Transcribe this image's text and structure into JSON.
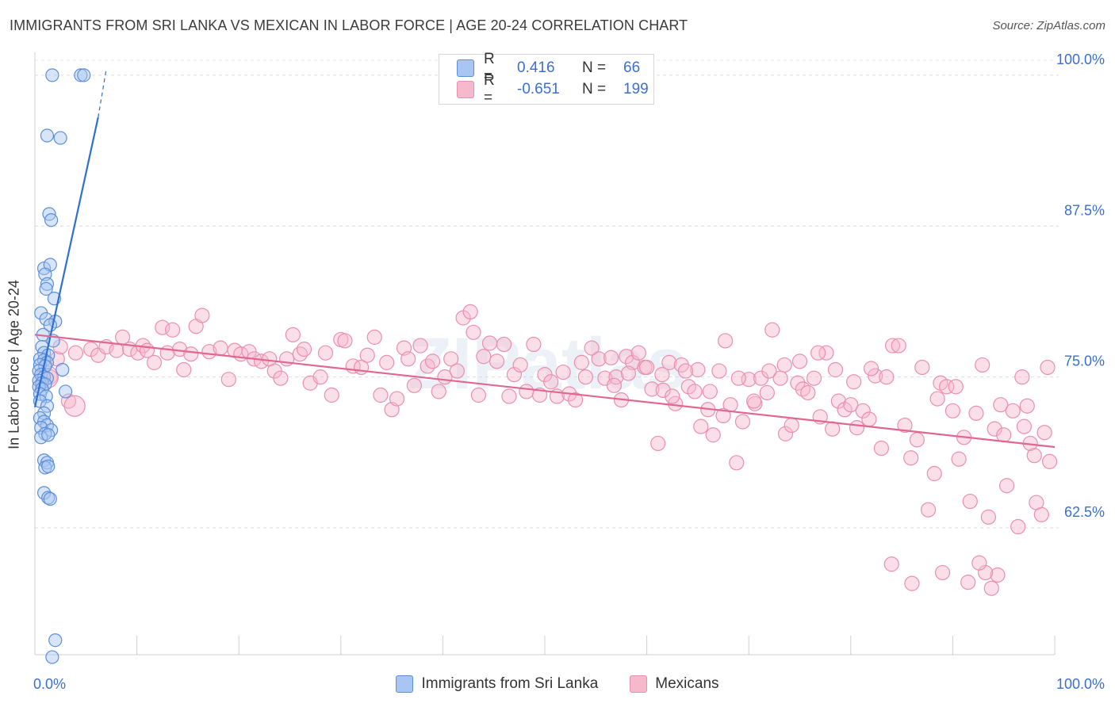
{
  "title": "IMMIGRANTS FROM SRI LANKA VS MEXICAN IN LABOR FORCE | AGE 20-24 CORRELATION CHART",
  "source": "Source: ZipAtlas.com",
  "watermark": "ZIPatlas",
  "legend": {
    "rows": [
      {
        "r_label": "R =",
        "r_value": "0.416",
        "n_label": "N =",
        "n_value": "66"
      },
      {
        "r_label": "R =",
        "r_value": "-0.651",
        "n_label": "N =",
        "n_value": "199"
      }
    ]
  },
  "chart_data": {
    "type": "scatter",
    "title": "IMMIGRANTS FROM SRI LANKA VS MEXICAN IN LABOR FORCE | AGE 20-24 CORRELATION CHART",
    "xlabel": "",
    "ylabel": "In Labor Force | Age 20-24",
    "xlim": [
      0,
      100
    ],
    "ylim": [
      52,
      101.5
    ],
    "x_tick_labels": [
      "0.0%",
      "100.0%"
    ],
    "y_ticks": [
      62.5,
      75.0,
      87.5,
      100.0
    ],
    "y_tick_labels": [
      "62.5%",
      "75.0%",
      "87.5%",
      "100.0%"
    ],
    "grid": true,
    "legend_position": "top-center",
    "colors": {
      "sri_lanka_fill": "#a9c6f2",
      "sri_lanka_stroke": "#5b8fd9",
      "sri_lanka_line": "#2f6fd0",
      "mexicans_fill": "#f6b9cc",
      "mexicans_stroke": "#ea8fae",
      "mexicans_line": "#e0678f",
      "tick_label": "#3a6fd1"
    },
    "series": [
      {
        "name": "Immigrants from Sri Lanka",
        "trend": {
          "x0": 0.0,
          "y0": 72.5,
          "x1": 6.2,
          "y1": 96.5,
          "dash_to_x": 7.0,
          "dash_to_y": 100.5
        },
        "points": [
          [
            1.7,
            100.0
          ],
          [
            4.5,
            100.0
          ],
          [
            4.8,
            100.0
          ],
          [
            1.2,
            95.0
          ],
          [
            2.5,
            94.8
          ],
          [
            1.4,
            88.5
          ],
          [
            1.6,
            88.0
          ],
          [
            0.9,
            84.0
          ],
          [
            1.5,
            84.3
          ],
          [
            1.0,
            83.5
          ],
          [
            1.2,
            82.7
          ],
          [
            1.1,
            82.3
          ],
          [
            1.9,
            81.5
          ],
          [
            0.6,
            80.3
          ],
          [
            1.1,
            79.8
          ],
          [
            2.0,
            79.6
          ],
          [
            1.5,
            79.3
          ],
          [
            0.8,
            78.5
          ],
          [
            1.8,
            78.0
          ],
          [
            0.7,
            77.5
          ],
          [
            0.9,
            77.0
          ],
          [
            1.3,
            76.8
          ],
          [
            0.5,
            76.5
          ],
          [
            0.9,
            76.4
          ],
          [
            1.2,
            76.2
          ],
          [
            0.5,
            76.0
          ],
          [
            1.0,
            75.9
          ],
          [
            2.7,
            75.6
          ],
          [
            0.4,
            75.5
          ],
          [
            0.6,
            75.2
          ],
          [
            0.9,
            75.0
          ],
          [
            1.2,
            74.9
          ],
          [
            0.4,
            74.7
          ],
          [
            0.7,
            74.5
          ],
          [
            1.0,
            74.4
          ],
          [
            0.4,
            74.2
          ],
          [
            0.7,
            74.0
          ],
          [
            3.0,
            73.8
          ],
          [
            0.5,
            73.6
          ],
          [
            1.1,
            73.4
          ],
          [
            0.5,
            73.0
          ],
          [
            1.2,
            72.6
          ],
          [
            0.9,
            72.0
          ],
          [
            0.5,
            71.6
          ],
          [
            0.9,
            71.3
          ],
          [
            1.2,
            71.0
          ],
          [
            0.6,
            70.8
          ],
          [
            1.6,
            70.6
          ],
          [
            1.0,
            70.3
          ],
          [
            0.6,
            70.0
          ],
          [
            1.3,
            70.2
          ],
          [
            0.9,
            68.1
          ],
          [
            1.2,
            67.9
          ],
          [
            1.0,
            67.5
          ],
          [
            1.3,
            67.6
          ],
          [
            0.9,
            65.4
          ],
          [
            1.3,
            65.0
          ],
          [
            1.5,
            64.9
          ],
          [
            2.0,
            53.2
          ],
          [
            1.7,
            51.8
          ]
        ]
      },
      {
        "name": "Mexicans",
        "trend": {
          "x0": 0.0,
          "y0": 78.5,
          "x1": 100.0,
          "y1": 69.2
        },
        "points": [
          [
            1.5,
            75.0
          ],
          [
            2.2,
            76.5
          ],
          [
            3.3,
            73.0
          ],
          [
            2.5,
            77.5
          ],
          [
            4.0,
            77.0
          ],
          [
            5.5,
            77.3
          ],
          [
            6.2,
            76.8
          ],
          [
            7.0,
            77.5
          ],
          [
            8.0,
            77.2
          ],
          [
            8.6,
            78.3
          ],
          [
            9.3,
            77.3
          ],
          [
            10.1,
            77.0
          ],
          [
            10.6,
            77.6
          ],
          [
            11.0,
            77.2
          ],
          [
            11.7,
            76.2
          ],
          [
            12.5,
            79.1
          ],
          [
            13.0,
            77.0
          ],
          [
            13.5,
            78.9
          ],
          [
            14.2,
            77.3
          ],
          [
            14.6,
            75.6
          ],
          [
            15.3,
            76.9
          ],
          [
            15.8,
            79.2
          ],
          [
            16.4,
            80.1
          ],
          [
            17.1,
            77.1
          ],
          [
            18.2,
            77.4
          ],
          [
            19.0,
            74.8
          ],
          [
            19.6,
            77.2
          ],
          [
            20.2,
            76.9
          ],
          [
            21.0,
            77.1
          ],
          [
            21.5,
            76.5
          ],
          [
            22.2,
            76.3
          ],
          [
            23.0,
            76.5
          ],
          [
            23.5,
            75.5
          ],
          [
            24.1,
            74.9
          ],
          [
            24.7,
            76.5
          ],
          [
            25.3,
            78.5
          ],
          [
            26.0,
            76.9
          ],
          [
            26.4,
            77.3
          ],
          [
            27.0,
            74.5
          ],
          [
            28.0,
            75.0
          ],
          [
            28.5,
            77.0
          ],
          [
            29.1,
            73.5
          ],
          [
            30.0,
            78.1
          ],
          [
            30.4,
            78.0
          ],
          [
            31.2,
            75.9
          ],
          [
            32.0,
            75.8
          ],
          [
            32.6,
            76.8
          ],
          [
            33.3,
            78.3
          ],
          [
            33.9,
            73.5
          ],
          [
            34.5,
            76.2
          ],
          [
            35.0,
            72.3
          ],
          [
            35.5,
            73.2
          ],
          [
            36.2,
            77.4
          ],
          [
            36.6,
            76.5
          ],
          [
            37.2,
            74.3
          ],
          [
            37.8,
            77.6
          ],
          [
            38.5,
            75.9
          ],
          [
            39.0,
            76.3
          ],
          [
            39.6,
            73.8
          ],
          [
            40.2,
            75.0
          ],
          [
            40.8,
            76.5
          ],
          [
            41.4,
            75.5
          ],
          [
            42.0,
            79.9
          ],
          [
            42.7,
            80.4
          ],
          [
            43.0,
            78.7
          ],
          [
            43.5,
            73.5
          ],
          [
            44.0,
            76.7
          ],
          [
            44.6,
            77.8
          ],
          [
            45.3,
            76.3
          ],
          [
            46.0,
            77.7
          ],
          [
            46.5,
            73.4
          ],
          [
            47.0,
            75.2
          ],
          [
            47.6,
            76.0
          ],
          [
            48.2,
            73.8
          ],
          [
            48.9,
            77.7
          ],
          [
            49.5,
            73.5
          ],
          [
            50.0,
            75.2
          ],
          [
            50.6,
            74.6
          ],
          [
            51.2,
            73.4
          ],
          [
            51.8,
            75.4
          ],
          [
            52.4,
            73.6
          ],
          [
            53.0,
            73.1
          ],
          [
            53.6,
            76.2
          ],
          [
            54.0,
            75.0
          ],
          [
            54.6,
            77.4
          ],
          [
            55.3,
            76.5
          ],
          [
            55.9,
            74.9
          ],
          [
            56.5,
            76.6
          ],
          [
            57.0,
            75.0
          ],
          [
            57.5,
            73.1
          ],
          [
            58.0,
            76.7
          ],
          [
            58.6,
            76.2
          ],
          [
            59.2,
            77.0
          ],
          [
            59.8,
            75.8
          ],
          [
            60.5,
            74.0
          ],
          [
            61.1,
            69.5
          ],
          [
            61.6,
            73.9
          ],
          [
            62.2,
            76.2
          ],
          [
            62.8,
            72.8
          ],
          [
            63.4,
            76.0
          ],
          [
            64.1,
            74.2
          ],
          [
            64.7,
            73.8
          ],
          [
            65.3,
            70.9
          ],
          [
            66.0,
            72.3
          ],
          [
            66.5,
            70.2
          ],
          [
            67.1,
            75.5
          ],
          [
            67.7,
            78.0
          ],
          [
            68.2,
            72.7
          ],
          [
            68.8,
            67.9
          ],
          [
            69.4,
            71.3
          ],
          [
            70.0,
            74.8
          ],
          [
            70.6,
            72.8
          ],
          [
            71.2,
            74.9
          ],
          [
            71.8,
            73.7
          ],
          [
            72.3,
            78.9
          ],
          [
            73.1,
            74.9
          ],
          [
            73.6,
            70.3
          ],
          [
            74.2,
            71.0
          ],
          [
            74.8,
            74.5
          ],
          [
            75.3,
            74.0
          ],
          [
            75.8,
            73.7
          ],
          [
            76.4,
            74.9
          ],
          [
            77.0,
            71.7
          ],
          [
            77.6,
            77.0
          ],
          [
            78.2,
            70.7
          ],
          [
            78.8,
            73.0
          ],
          [
            79.4,
            72.3
          ],
          [
            80.0,
            72.7
          ],
          [
            80.6,
            70.8
          ],
          [
            81.2,
            72.2
          ],
          [
            81.8,
            71.5
          ],
          [
            82.4,
            75.1
          ],
          [
            83.0,
            69.1
          ],
          [
            83.5,
            75.0
          ],
          [
            84.1,
            77.6
          ],
          [
            84.7,
            77.6
          ],
          [
            85.3,
            71.0
          ],
          [
            85.9,
            68.3
          ],
          [
            86.5,
            69.8
          ],
          [
            87.0,
            75.8
          ],
          [
            87.6,
            64.0
          ],
          [
            88.2,
            67.0
          ],
          [
            88.8,
            74.5
          ],
          [
            89.4,
            74.2
          ],
          [
            90.0,
            72.2
          ],
          [
            90.6,
            68.2
          ],
          [
            91.1,
            70.0
          ],
          [
            91.7,
            64.7
          ],
          [
            92.3,
            72.0
          ],
          [
            92.9,
            76.0
          ],
          [
            93.5,
            63.4
          ],
          [
            94.1,
            70.7
          ],
          [
            94.7,
            72.7
          ],
          [
            95.3,
            66.0
          ],
          [
            95.9,
            72.2
          ],
          [
            96.4,
            62.6
          ],
          [
            97.0,
            70.9
          ],
          [
            97.6,
            69.5
          ],
          [
            98.2,
            64.6
          ],
          [
            98.7,
            63.6
          ],
          [
            99.3,
            75.8
          ],
          [
            99.0,
            70.4
          ],
          [
            99.5,
            68.0
          ],
          [
            98.0,
            68.5
          ],
          [
            97.3,
            72.6
          ],
          [
            96.8,
            75.0
          ],
          [
            95.0,
            70.2
          ],
          [
            94.4,
            58.6
          ],
          [
            93.8,
            57.5
          ],
          [
            93.2,
            58.8
          ],
          [
            92.6,
            59.6
          ],
          [
            91.5,
            58.0
          ],
          [
            90.3,
            74.2
          ],
          [
            89.0,
            58.8
          ],
          [
            88.5,
            73.2
          ],
          [
            86.0,
            57.9
          ],
          [
            84.0,
            59.5
          ],
          [
            82.0,
            75.7
          ],
          [
            80.3,
            74.6
          ],
          [
            78.5,
            75.6
          ],
          [
            76.8,
            77.0
          ],
          [
            75.0,
            76.3
          ],
          [
            73.5,
            76.0
          ],
          [
            72.0,
            75.5
          ],
          [
            70.5,
            73.0
          ],
          [
            69.0,
            74.9
          ],
          [
            67.5,
            71.8
          ],
          [
            66.2,
            73.8
          ],
          [
            65.0,
            75.6
          ],
          [
            63.8,
            75.5
          ],
          [
            62.5,
            73.4
          ],
          [
            61.5,
            75.2
          ],
          [
            60.0,
            75.8
          ],
          [
            58.2,
            75.3
          ],
          [
            56.8,
            74.3
          ]
        ]
      }
    ]
  },
  "bottom_legend": {
    "items": [
      "Immigrants from Sri Lanka",
      "Mexicans"
    ]
  }
}
